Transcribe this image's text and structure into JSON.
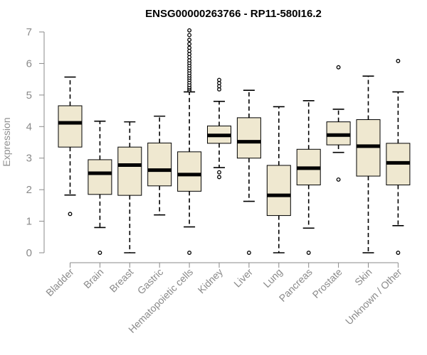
{
  "chart_data": {
    "type": "boxplot",
    "title": "ENSG00000263766 - RP11-580I16.2",
    "xlabel": "",
    "ylabel": "Expression",
    "ylim": [
      0,
      7
    ],
    "yticks": [
      0,
      1,
      2,
      3,
      4,
      5,
      6,
      7
    ],
    "categories": [
      "Bladder",
      "Brain",
      "Breast",
      "Gastric",
      "Hematopoietic cells",
      "Kidney",
      "Liver",
      "Lung",
      "Pancreas",
      "Prostate",
      "Skin",
      "Unknown / Other"
    ],
    "boxes": [
      {
        "name": "Bladder",
        "whisker_low": 1.83,
        "q1": 3.35,
        "median": 4.12,
        "q3": 4.66,
        "whisker_high": 5.57,
        "outliers": [
          1.23
        ]
      },
      {
        "name": "Brain",
        "whisker_low": 0.8,
        "q1": 1.85,
        "median": 2.52,
        "q3": 2.95,
        "whisker_high": 4.17,
        "outliers": [
          0.0
        ]
      },
      {
        "name": "Breast",
        "whisker_low": 0.0,
        "q1": 1.82,
        "median": 2.78,
        "q3": 3.35,
        "whisker_high": 4.15,
        "outliers": []
      },
      {
        "name": "Gastric",
        "whisker_low": 1.2,
        "q1": 2.12,
        "median": 2.62,
        "q3": 3.48,
        "whisker_high": 4.33,
        "outliers": []
      },
      {
        "name": "Hematopoietic cells",
        "whisker_low": 0.82,
        "q1": 1.95,
        "median": 2.48,
        "q3": 3.2,
        "whisker_high": 5.1,
        "outliers": [
          0.0,
          5.15,
          5.2,
          5.25,
          5.32,
          5.4,
          5.48,
          5.55,
          5.62,
          5.7,
          5.78,
          5.86,
          5.94,
          6.02,
          6.1,
          6.2,
          6.3,
          6.4,
          6.5,
          6.62,
          6.75,
          6.9,
          7.05
        ]
      },
      {
        "name": "Kidney",
        "whisker_low": 2.7,
        "q1": 3.47,
        "median": 3.72,
        "q3": 4.02,
        "whisker_high": 4.8,
        "outliers": [
          2.4,
          2.55,
          5.18,
          5.28,
          5.38,
          5.48
        ]
      },
      {
        "name": "Liver",
        "whisker_low": 1.63,
        "q1": 3.0,
        "median": 3.52,
        "q3": 4.28,
        "whisker_high": 5.15,
        "outliers": [
          0.0
        ]
      },
      {
        "name": "Lung",
        "whisker_low": 0.0,
        "q1": 1.18,
        "median": 1.82,
        "q3": 2.77,
        "whisker_high": 4.63,
        "outliers": []
      },
      {
        "name": "Pancreas",
        "whisker_low": 0.78,
        "q1": 2.15,
        "median": 2.68,
        "q3": 3.28,
        "whisker_high": 4.82,
        "outliers": [
          0.0
        ]
      },
      {
        "name": "Prostate",
        "whisker_low": 3.18,
        "q1": 3.42,
        "median": 3.73,
        "q3": 4.15,
        "whisker_high": 4.55,
        "outliers": [
          2.32,
          5.88
        ]
      },
      {
        "name": "Skin",
        "whisker_low": 0.0,
        "q1": 2.43,
        "median": 3.38,
        "q3": 4.22,
        "whisker_high": 5.6,
        "outliers": []
      },
      {
        "name": "Unknown / Other",
        "whisker_low": 0.86,
        "q1": 2.15,
        "median": 2.85,
        "q3": 3.47,
        "whisker_high": 5.1,
        "outliers": [
          0.0,
          6.08
        ]
      }
    ],
    "colors": {
      "box_fill": "#efe8d0",
      "stroke": "#000000",
      "axis": "#8a8a8a"
    },
    "grid": false,
    "legend": "none"
  }
}
